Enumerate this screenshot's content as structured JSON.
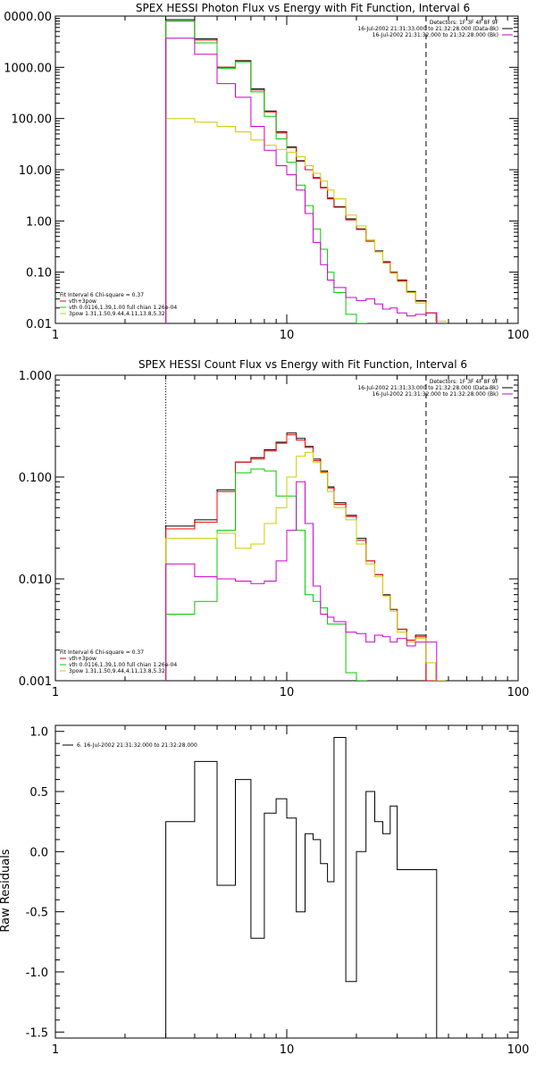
{
  "chart_data": [
    {
      "type": "line",
      "title": "SPEX HESSI Photon Flux vs Energy with Fit Function, Interval 6",
      "xscale": "log",
      "yscale": "log",
      "xlim": [
        1,
        100
      ],
      "ylim": [
        0.01,
        10000
      ],
      "x_ticks": [
        "1",
        "10",
        "100"
      ],
      "y_ticks": [
        "0.01",
        "0.10",
        "1.00",
        "10.00",
        "100.00",
        "1000.00",
        "0000.00"
      ],
      "dotted_x": 3,
      "dashed_x": 40,
      "legend_top_right": [
        {
          "text": "Detectors: 1F 3F 4F 8F 9F",
          "color": "#000000"
        },
        {
          "text": "16-Jul-2002 21:31:33.000 to 21:32:28.000 (Data-Bk)",
          "color": "#000000"
        },
        {
          "text": "16-Jul-2002 21:31:32.000 to 21:32:28.000 (Bk)",
          "color": "#cc00cc"
        }
      ],
      "legend_bottom_left": [
        {
          "text": "Fit Interval 6   Chi-square = 0.37",
          "color": "#000000"
        },
        {
          "text": "vth+3pow",
          "color": "#ff0000"
        },
        {
          "text": "vth 0.0116,1.39,1.00  full chian 1.26e-04",
          "color": "#00cc00"
        },
        {
          "text": "3pow 1.31,1.50,9.44,4.11,13.8,5.32",
          "color": "#cccc00"
        }
      ],
      "series": [
        {
          "color": "#000000",
          "x": [
            3,
            4,
            5,
            6,
            7,
            8,
            9,
            10,
            11,
            12,
            13,
            14,
            15,
            16,
            18,
            20,
            22,
            24,
            26,
            28,
            30,
            33,
            36,
            40
          ],
          "values": [
            8500,
            3600,
            1000,
            1350,
            380,
            140,
            55,
            28,
            15,
            10,
            7,
            4.5,
            2.8,
            1.9,
            1.1,
            0.7,
            0.42,
            0.26,
            0.16,
            0.1,
            0.07,
            0.042,
            0.028,
            0.016
          ]
        },
        {
          "color": "#ff0000",
          "x": [
            3,
            4,
            5,
            6,
            7,
            8,
            9,
            10,
            11,
            12,
            13,
            14,
            15,
            16,
            18,
            20,
            22,
            24,
            26,
            28,
            30,
            33,
            36,
            40
          ],
          "values": [
            8000,
            3400,
            1000,
            1300,
            360,
            135,
            52,
            27,
            14.5,
            10,
            6.8,
            4.4,
            2.7,
            1.85,
            1.05,
            0.68,
            0.4,
            0.25,
            0.155,
            0.097,
            0.068,
            0.041,
            0.027,
            0.016
          ]
        },
        {
          "color": "#00cc00",
          "x": [
            3,
            4,
            5,
            6,
            7,
            8,
            9,
            10,
            11,
            12,
            13,
            14,
            15,
            16,
            18,
            20
          ],
          "values": [
            8000,
            3000,
            950,
            1280,
            330,
            110,
            40,
            14,
            5,
            2,
            0.7,
            0.28,
            0.1,
            0.04,
            0.015,
            0.006
          ]
        },
        {
          "color": "#cccc00",
          "x": [
            3,
            4,
            5,
            6,
            7,
            8,
            9,
            10,
            11,
            12,
            13,
            14,
            15,
            16,
            18,
            20,
            22,
            24,
            26,
            28,
            30,
            33,
            36,
            40,
            44
          ],
          "values": [
            100,
            85,
            70,
            55,
            38,
            30,
            25,
            22,
            18,
            12,
            8.5,
            6,
            4,
            2.7,
            1.3,
            0.8,
            0.42,
            0.25,
            0.15,
            0.095,
            0.065,
            0.04,
            0.025,
            0.016,
            0.011
          ]
        },
        {
          "color": "#cc00cc",
          "x": [
            3,
            4,
            5,
            6,
            7,
            8,
            9,
            10,
            11,
            12,
            13,
            14,
            15,
            16,
            18,
            20,
            22,
            24,
            26,
            28,
            30,
            33,
            36,
            40
          ],
          "values": [
            3700,
            1800,
            480,
            260,
            70,
            24,
            12,
            8,
            4,
            1.4,
            0.38,
            0.14,
            0.07,
            0.05,
            0.032,
            0.028,
            0.03,
            0.024,
            0.019,
            0.02,
            0.016,
            0.014,
            0.015,
            0.016
          ]
        }
      ]
    },
    {
      "type": "line",
      "title": "SPEX HESSI Count Flux vs Energy with Fit Function, Interval 6",
      "xscale": "log",
      "yscale": "log",
      "xlim": [
        1,
        100
      ],
      "ylim": [
        0.001,
        1
      ],
      "x_ticks": [
        "1",
        "10",
        "100"
      ],
      "y_ticks": [
        "0.001",
        "0.010",
        "0.100",
        "1.000"
      ],
      "dotted_x": 3,
      "dashed_x": 40,
      "legend_top_right": [
        {
          "text": "Detectors: 1F 3F 4F 8F 9F",
          "color": "#000000"
        },
        {
          "text": "16-Jul-2002 21:31:33.000 to 21:32:28.000 (Data-Bk)",
          "color": "#000000"
        },
        {
          "text": "16-Jul-2002 21:31:32.000 to 21:32:28.000 (Bk)",
          "color": "#cc00cc"
        }
      ],
      "legend_bottom_left": [
        {
          "text": "Fit Interval 6   Chi-square = 0.37",
          "color": "#000000"
        },
        {
          "text": "vth+3pow",
          "color": "#ff0000"
        },
        {
          "text": "vth 0.0116,1.39,1.00  full chian 1.26e-04",
          "color": "#00cc00"
        },
        {
          "text": "3pow 1.31,1.50,9.44,4.11,13.8,5.32",
          "color": "#cccc00"
        }
      ],
      "series": [
        {
          "color": "#000000",
          "x": [
            3,
            4,
            5,
            6,
            7,
            8,
            9,
            10,
            11,
            12,
            13,
            14,
            15,
            16,
            18,
            20,
            22,
            24,
            26,
            28,
            30,
            33,
            36,
            40
          ],
          "values": [
            0.033,
            0.038,
            0.075,
            0.14,
            0.155,
            0.185,
            0.22,
            0.27,
            0.24,
            0.2,
            0.15,
            0.115,
            0.08,
            0.056,
            0.042,
            0.025,
            0.015,
            0.011,
            0.007,
            0.005,
            0.0032,
            0.0025,
            0.0028,
            0.001
          ]
        },
        {
          "color": "#ff0000",
          "x": [
            3,
            4,
            5,
            6,
            7,
            8,
            9,
            10,
            11,
            12,
            13,
            14,
            15,
            16,
            18,
            20,
            22,
            24,
            26,
            28,
            30,
            33,
            36,
            40
          ],
          "values": [
            0.031,
            0.036,
            0.072,
            0.14,
            0.15,
            0.18,
            0.215,
            0.26,
            0.23,
            0.195,
            0.145,
            0.112,
            0.078,
            0.054,
            0.041,
            0.024,
            0.015,
            0.011,
            0.0069,
            0.005,
            0.0032,
            0.0025,
            0.0027,
            0.001
          ]
        },
        {
          "color": "#00cc00",
          "x": [
            3,
            4,
            5,
            6,
            7,
            8,
            9,
            10,
            11,
            12,
            13,
            14,
            15,
            16,
            18,
            20
          ],
          "values": [
            0.0045,
            0.006,
            0.03,
            0.11,
            0.12,
            0.115,
            0.065,
            0.065,
            0.03,
            0.007,
            0.006,
            0.0052,
            0.0036,
            0.0036,
            0.0012,
            0.001
          ]
        },
        {
          "color": "#cccc00",
          "x": [
            3,
            4,
            5,
            6,
            7,
            8,
            9,
            10,
            11,
            12,
            13,
            14,
            15,
            16,
            18,
            20,
            22,
            24,
            26,
            28,
            30,
            33,
            36,
            40,
            44
          ],
          "values": [
            0.025,
            0.025,
            0.028,
            0.02,
            0.022,
            0.035,
            0.05,
            0.1,
            0.16,
            0.175,
            0.14,
            0.11,
            0.072,
            0.05,
            0.038,
            0.022,
            0.014,
            0.0105,
            0.0068,
            0.0048,
            0.003,
            0.0024,
            0.0026,
            0.0015,
            0.001
          ]
        },
        {
          "color": "#cc00cc",
          "x": [
            3,
            4,
            5,
            6,
            7,
            8,
            9,
            10,
            11,
            12,
            13,
            14,
            15,
            16,
            18,
            20,
            22,
            24,
            26,
            28,
            30,
            33,
            36,
            40
          ],
          "values": [
            0.014,
            0.0105,
            0.01,
            0.0095,
            0.009,
            0.0095,
            0.015,
            0.03,
            0.09,
            0.035,
            0.0085,
            0.0045,
            0.0042,
            0.0038,
            0.003,
            0.0029,
            0.0024,
            0.0028,
            0.0027,
            0.0024,
            0.0026,
            0.0022,
            0.0024,
            0.0024
          ]
        }
      ]
    },
    {
      "type": "line",
      "title": "",
      "xscale": "log",
      "yscale": "linear",
      "ylabel": "Raw Residuals",
      "xlim": [
        1,
        100
      ],
      "ylim": [
        -1.55,
        1.05
      ],
      "x_ticks": [
        "1",
        "10",
        "100"
      ],
      "y_ticks": [
        "1.0",
        "0.5",
        "0.0",
        "-0.5",
        "-1.0",
        "-1.5"
      ],
      "legend": "6. 16-Jul-2002 21:31:32.000 to 21:32:28.000",
      "series": [
        {
          "color": "#000000",
          "x": [
            3,
            4,
            5,
            6,
            7,
            8,
            9,
            10,
            11,
            12,
            13,
            14,
            15,
            16,
            18,
            20,
            22,
            24,
            26,
            28,
            30,
            33,
            36,
            40
          ],
          "values": [
            0.25,
            0.75,
            -0.28,
            0.6,
            -0.72,
            0.32,
            0.44,
            0.28,
            -0.5,
            0.15,
            0.1,
            -0.1,
            -0.25,
            0.95,
            -1.08,
            0.0,
            0.5,
            0.25,
            0.15,
            0.38,
            -0.15,
            -0.15,
            -0.15,
            -0.15
          ]
        }
      ]
    }
  ]
}
